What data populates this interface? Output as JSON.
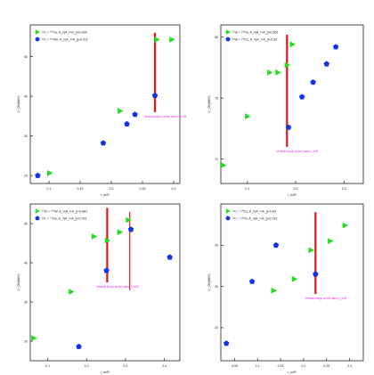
{
  "colors": {
    "green": "#22dd22",
    "blue": "#1133ee",
    "red": "#ee1111",
    "magenta": "#ee22ee",
    "axis": "#222222"
  },
  "chart_data": [
    {
      "type": "scatter",
      "xlabel": "r_m/R",
      "ylabel": "V_CB(MeV)",
      "xlim": [
        0.07,
        0.31
      ],
      "ylim": [
        18,
        58
      ],
      "xticks": [
        "0.1",
        "0.15",
        "0.2",
        "0.25",
        "0.3"
      ],
      "yticks": [
        "20",
        "30",
        "40",
        "50"
      ],
      "series": [
        {
          "name": "¹²C + ¹⁸¹Ta, A_i/(A_i+A_j)≈0.934",
          "marker": "triangle",
          "x": [
            0.101,
            0.214,
            0.273,
            0.297
          ],
          "y": [
            20.6,
            36.3,
            54.3,
            54.3
          ]
        },
        {
          "name": "¹²C + ¹⁰⁰Mo, A_i/(A_i+A_j)≈0.911",
          "marker": "pentagon",
          "x": [
            0.082,
            0.187,
            0.225,
            0.238,
            0.27
          ],
          "y": [
            20.0,
            28.2,
            33.0,
            35.4,
            40.2
          ]
        }
      ],
      "vline": {
        "x": 0.27,
        "y": [
          36,
          56
        ]
      },
      "annotation": "Vertical line(s) at the same r_m/R"
    },
    {
      "type": "scatter",
      "xlabel": "r_m/R",
      "ylabel": "V_CB(MeV)",
      "xlim": [
        0.045,
        0.34
      ],
      "ylim": [
        68,
        81
      ],
      "xticks": [
        "0.1",
        "0.2",
        "0.3"
      ],
      "yticks": [
        "70",
        "75",
        "80"
      ],
      "series": [
        {
          "name": "²⁸Si + ¹⁸²Ta, A_i/(A_i+A_j)≈0.861",
          "marker": "triangle",
          "x": [
            0.05,
            0.1,
            0.146,
            0.163,
            0.182,
            0.193
          ],
          "y": [
            69.5,
            73.5,
            77.1,
            77.1,
            77.7,
            79.4
          ]
        },
        {
          "name": "²⁸Si + ¹³³Cs, A_i/(A_i+A_j)≈0.83",
          "marker": "pentagon",
          "x": [
            0.185,
            0.213,
            0.236,
            0.264,
            0.283
          ],
          "y": [
            72.6,
            75.1,
            76.3,
            77.8,
            79.2
          ]
        }
      ],
      "vline": {
        "x": 0.182,
        "y": [
          71,
          80.2
        ]
      },
      "annotation": "Vertical line(s) at the same r_m/R"
    },
    {
      "type": "scatter",
      "xlabel": "r_m/R",
      "ylabel": "V_CB(MeV)",
      "xlim": [
        0.055,
        0.44
      ],
      "ylim": [
        15,
        55
      ],
      "xticks": [
        "0.1",
        "0.2",
        "0.3",
        "0.4"
      ],
      "yticks": [
        "20",
        "30",
        "40",
        "50"
      ],
      "series": [
        {
          "name": "²⁸Si + ¹⁸⁴W, A_i/(A_i+A_j)≈0.861",
          "marker": "triangle",
          "x": [
            0.064,
            0.16,
            0.219,
            0.253,
            0.285,
            0.307
          ],
          "y": [
            20.8,
            32.6,
            46.7,
            45.7,
            47.8,
            50.9
          ]
        },
        {
          "name": "¹²C + ⁷⁴Ge, A_i/(A_i+A_j)≈0.761",
          "marker": "pentagon",
          "x": [
            0.18,
            0.251,
            0.314,
            0.414
          ],
          "y": [
            18.6,
            38.0,
            48.5,
            41.4
          ]
        }
      ],
      "vline": {
        "x": 0.253,
        "y": [
          35,
          54
        ]
      },
      "vline2": {
        "x": 0.311,
        "y": [
          33,
          53
        ]
      },
      "annotation": "Vertical line(s) at the same r_m/R"
    },
    {
      "type": "scatter",
      "xlabel": "r_m/R",
      "ylabel": "V_CB(MeV)",
      "xlim": [
        0.02,
        0.33
      ],
      "ylim": [
        16,
        35
      ],
      "xticks": [
        "0.05",
        "0.1",
        "0.15",
        "0.2",
        "0.25",
        "0.3"
      ],
      "yticks": [
        "20",
        "25",
        "30"
      ],
      "series": [
        {
          "name": "¹²C + ¹³³Cs, A_i/(A_i+A_j)≈0.83",
          "marker": "triangle",
          "x": [
            0.135,
            0.18,
            0.216,
            0.258,
            0.29
          ],
          "y": [
            24.5,
            25.9,
            29.4,
            30.5,
            32.4
          ]
        },
        {
          "name": "¹²C + ¹³⁰Te, A_i/(A_i+A_j)≈0.781",
          "marker": "pentagon",
          "x": [
            0.032,
            0.088,
            0.14,
            0.226
          ],
          "y": [
            18.1,
            25.6,
            30.0,
            26.5
          ]
        }
      ],
      "vline": {
        "x": 0.226,
        "y": [
          24.1,
          34
        ]
      },
      "annotation": "Vertical line(s) at the same r_m/R"
    }
  ]
}
